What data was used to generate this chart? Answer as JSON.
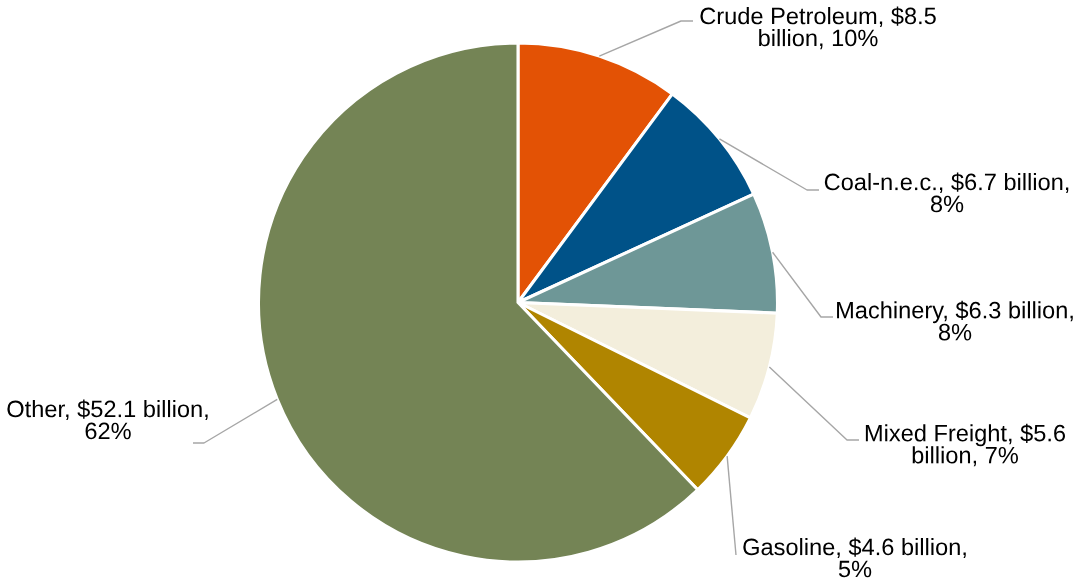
{
  "chart_data": {
    "type": "pie",
    "categories": [
      "Crude Petroleum, $8.5 billion, 10%",
      "Coal-n.e.c., $6.7 billion, 8%",
      "Machinery, $6.3 billion, 8%",
      "Mixed Freight, $5.6 billion, 7%",
      "Gasoline, $4.6 billion, 5%",
      "Other, $52.1 billion, 62%"
    ],
    "values": [
      8.5,
      6.7,
      6.3,
      5.6,
      4.6,
      52.1
    ],
    "colors": [
      "#e35205",
      "#005288",
      "#6e9797",
      "#f3eedc",
      "#b08500",
      "#748455"
    ]
  }
}
